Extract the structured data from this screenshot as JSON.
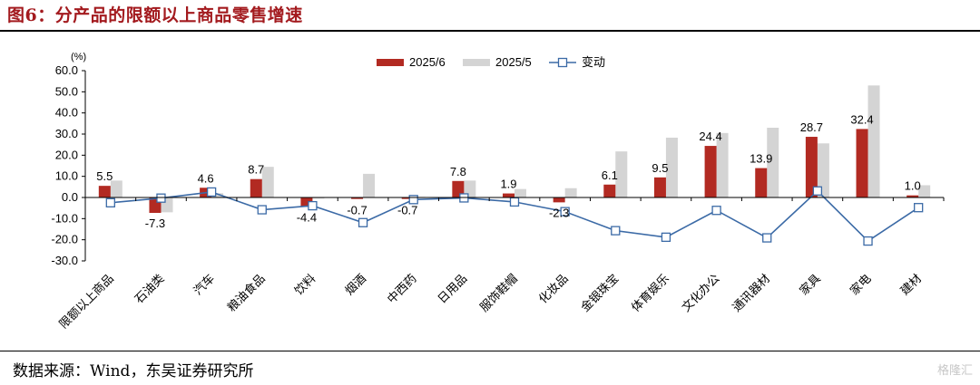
{
  "figure": {
    "title": "图6：分产品的限额以上商品零售增速",
    "source": "数据来源：Wind，东吴证券研究所",
    "watermark": "格隆汇"
  },
  "chart_data": {
    "type": "bar",
    "unit_label": "(%)",
    "categories": [
      "限额以上商品",
      "石油类",
      "汽车",
      "粮油食品",
      "饮料",
      "烟酒",
      "中西药",
      "日用品",
      "服饰鞋帽",
      "化妆品",
      "金银珠宝",
      "体育娱乐",
      "文化办公",
      "通讯器材",
      "家具",
      "家电",
      "建材"
    ],
    "series": [
      {
        "name": "2025/6",
        "type": "bar",
        "color": "#b22a22",
        "values": [
          5.5,
          -7.3,
          4.6,
          8.7,
          -4.4,
          -0.7,
          -0.7,
          7.8,
          1.9,
          -2.3,
          6.1,
          9.5,
          24.4,
          13.9,
          28.7,
          32.4,
          1.0
        ]
      },
      {
        "name": "2025/5",
        "type": "bar",
        "color": "#d4d4d4",
        "values": [
          8.0,
          -7.0,
          2.0,
          14.5,
          -0.5,
          11.2,
          0.3,
          8.0,
          4.0,
          4.4,
          21.8,
          28.3,
          30.5,
          33.0,
          25.6,
          53.0,
          5.8
        ]
      },
      {
        "name": "变动",
        "type": "line",
        "color": "#3b6aa6",
        "values": [
          -2.5,
          -0.3,
          2.6,
          -5.8,
          -3.9,
          -11.9,
          -1.0,
          -0.2,
          -2.1,
          -6.7,
          -15.7,
          -18.8,
          -6.1,
          -19.1,
          3.1,
          -20.6,
          -4.8
        ]
      }
    ],
    "data_labels": [
      "5.5",
      "-7.3",
      "4.6",
      "8.7",
      "-4.4",
      "-0.7",
      "-0.7",
      "7.8",
      "1.9",
      "-2.3",
      "6.1",
      "9.5",
      "24.4",
      "13.9",
      "28.7",
      "32.4",
      "1.0"
    ],
    "y_ticks": [
      "60.0",
      "50.0",
      "40.0",
      "30.0",
      "20.0",
      "10.0",
      "0.0",
      "-10.0",
      "-20.0",
      "-30.0"
    ],
    "ylim": [
      -30,
      60
    ],
    "grid": false,
    "legend_position": "top-center"
  }
}
